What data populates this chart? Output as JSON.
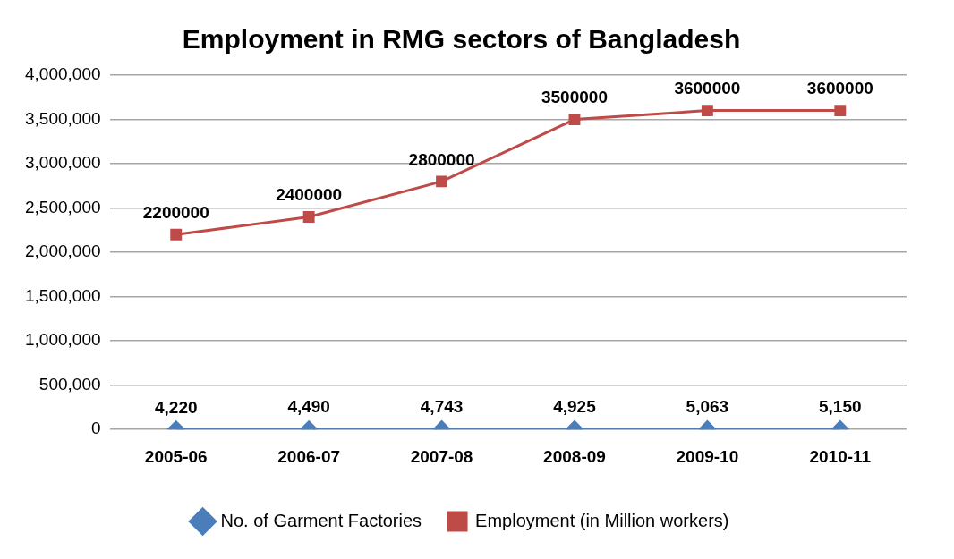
{
  "chart_data": {
    "type": "line",
    "title": "Employment in RMG sectors of Bangladesh",
    "categories": [
      "2005-06",
      "2006-07",
      "2007-08",
      "2008-09",
      "2009-10",
      "2010-11"
    ],
    "series": [
      {
        "name": "No. of Garment Factories",
        "color": "#4a7ebb",
        "marker": "diamond",
        "values": [
          4220,
          4490,
          4743,
          4925,
          5063,
          5150
        ],
        "value_labels": [
          "4,220",
          "4,490",
          "4,743",
          "4,925",
          "5,063",
          "5,150"
        ]
      },
      {
        "name": "Employment (in Million workers)",
        "color": "#be4b48",
        "marker": "square",
        "values": [
          2200000,
          2400000,
          2800000,
          3500000,
          3600000,
          3600000
        ],
        "value_labels": [
          "2200000",
          "2400000",
          "2800000",
          "3500000",
          "3600000",
          "3600000"
        ]
      }
    ],
    "ylim": [
      0,
      4000000
    ],
    "yticks": [
      {
        "value": 0,
        "label": "0"
      },
      {
        "value": 500000,
        "label": "500,000"
      },
      {
        "value": 1000000,
        "label": "1,000,000"
      },
      {
        "value": 1500000,
        "label": "1,500,000"
      },
      {
        "value": 2000000,
        "label": "2,000,000"
      },
      {
        "value": 2500000,
        "label": "2,500,000"
      },
      {
        "value": 3000000,
        "label": "3,000,000"
      },
      {
        "value": 3500000,
        "label": "3,500,000"
      },
      {
        "value": 4000000,
        "label": "4,000,000"
      }
    ],
    "grid": "y",
    "legend": "bottom"
  }
}
